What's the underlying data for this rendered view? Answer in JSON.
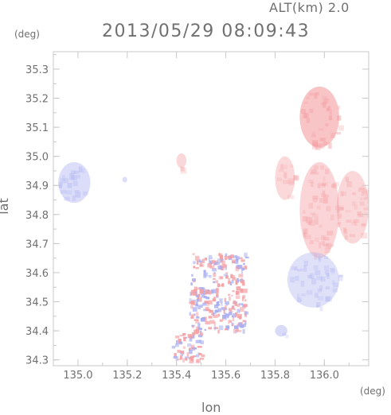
{
  "header": {
    "altitude_label": "ALT(km) 2.0",
    "timestamp": "2013/05/29 08:09:43"
  },
  "axes": {
    "x_title": "lon",
    "x_unit": "(deg)",
    "y_title": "lat",
    "y_unit": "(deg)",
    "x_range": [
      134.9,
      136.18
    ],
    "y_range": [
      34.28,
      35.36
    ],
    "x_ticks": [
      "135.0",
      "135.2",
      "135.4",
      "135.6",
      "135.8",
      "136.0"
    ],
    "y_ticks": [
      "34.3",
      "34.4",
      "34.5",
      "34.6",
      "34.7",
      "34.8",
      "34.9",
      "35.0",
      "35.1",
      "35.2",
      "35.3"
    ]
  },
  "colors": {
    "positive": "#f4a0a4",
    "negative": "#a9aef0",
    "frame": "#c8c8c8"
  },
  "chart_data": {
    "type": "heatmap",
    "xlabel": "lon",
    "ylabel": "lat",
    "xlim": [
      134.9,
      136.18
    ],
    "ylim": [
      34.28,
      35.36
    ],
    "regions": [
      {
        "lon": [
          134.92,
          135.05
        ],
        "lat": [
          34.84,
          34.98
        ],
        "sign": "negative",
        "strength": 0.35
      },
      {
        "lon": [
          135.18,
          135.2
        ],
        "lat": [
          34.91,
          34.93
        ],
        "sign": "negative",
        "strength": 0.3
      },
      {
        "lon": [
          135.9,
          136.06
        ],
        "lat": [
          35.03,
          35.24
        ],
        "sign": "positive",
        "strength": 0.75
      },
      {
        "lon": [
          135.8,
          135.88
        ],
        "lat": [
          34.85,
          35.0
        ],
        "sign": "positive",
        "strength": 0.3
      },
      {
        "lon": [
          135.9,
          136.06
        ],
        "lat": [
          34.65,
          34.98
        ],
        "sign": "positive",
        "strength": 0.4
      },
      {
        "lon": [
          136.05,
          136.18
        ],
        "lat": [
          34.7,
          34.95
        ],
        "sign": "positive",
        "strength": 0.35
      },
      {
        "lon": [
          135.85,
          136.06
        ],
        "lat": [
          34.48,
          34.67
        ],
        "sign": "negative",
        "strength": 0.25
      },
      {
        "lon": [
          135.4,
          135.44
        ],
        "lat": [
          34.96,
          35.01
        ],
        "sign": "positive",
        "strength": 0.35
      },
      {
        "lon": [
          135.45,
          135.68
        ],
        "lat": [
          34.4,
          34.67
        ],
        "sign": "mixed",
        "strength": 0.7
      },
      {
        "lon": [
          135.38,
          135.5
        ],
        "lat": [
          34.3,
          34.4
        ],
        "sign": "mixed",
        "strength": 0.5
      },
      {
        "lon": [
          135.8,
          135.85
        ],
        "lat": [
          34.38,
          34.42
        ],
        "sign": "negative",
        "strength": 0.4
      }
    ]
  }
}
